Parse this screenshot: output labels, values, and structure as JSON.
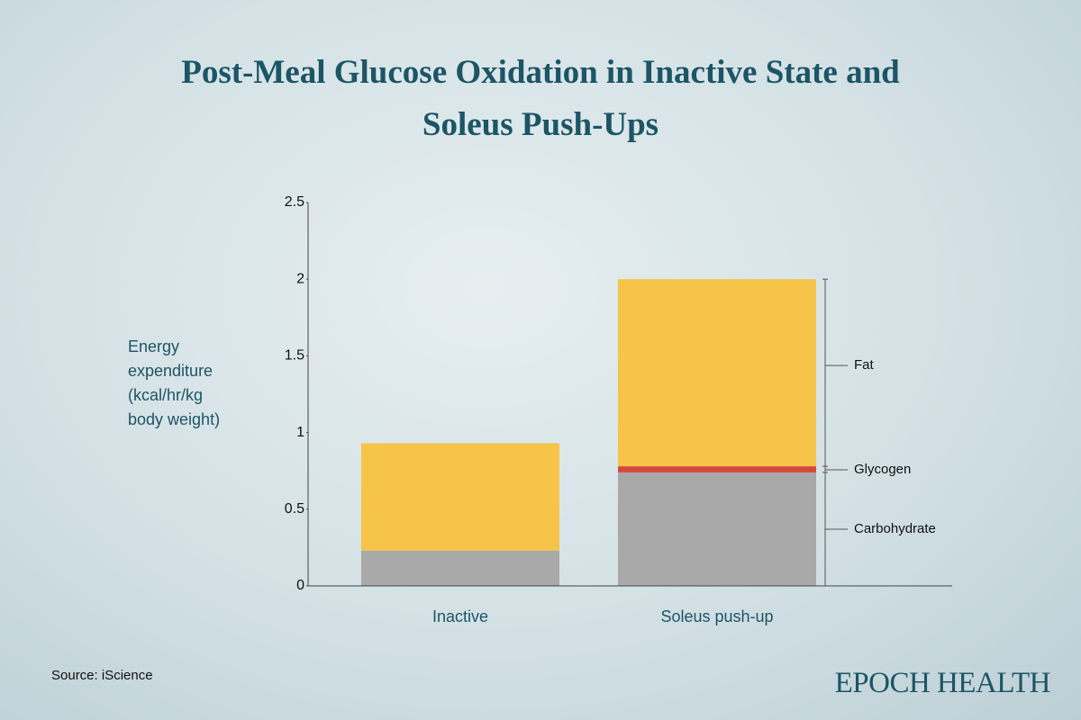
{
  "title": "Post-Meal Glucose Oxidation in Inactive State and Soleus Push-Ups",
  "chart_data": {
    "type": "stacked_bar",
    "ylabel": "Energy expenditure (kcal/hr/kg body weight)",
    "categories": [
      "Inactive",
      "Soleus push-up"
    ],
    "series": [
      {
        "name": "Carbohydrate",
        "color": "#a9a9a9",
        "values": [
          0.23,
          0.74
        ]
      },
      {
        "name": "Glycogen",
        "color": "#d9473a",
        "values": [
          0,
          0.04
        ]
      },
      {
        "name": "Fat",
        "color": "#f5c449",
        "values": [
          0.7,
          1.22
        ]
      }
    ],
    "ylim": [
      0,
      2.5
    ],
    "yticks": [
      0,
      0.5,
      1,
      1.5,
      2,
      2.5
    ]
  },
  "source": "Source: iScience",
  "brand": "EPOCH HEALTH"
}
